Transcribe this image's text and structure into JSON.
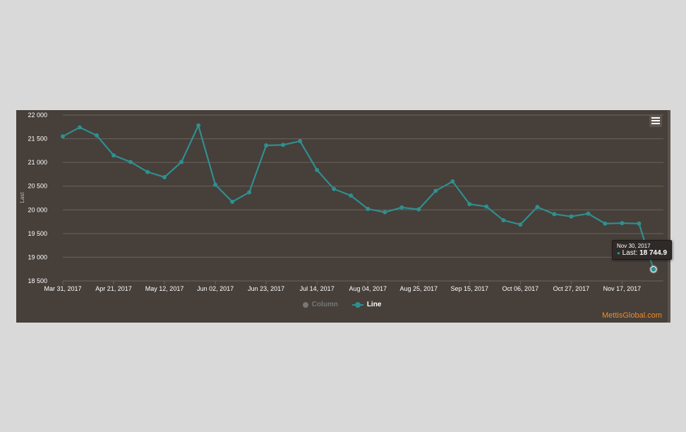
{
  "colors": {
    "page_background": "#d9d9d9",
    "plot_background": "#463f3a",
    "series_line": "#2f8f8f",
    "grid": "#6b635d",
    "axis_text": "#ffffff",
    "legend_inactive": "#777777",
    "credit": "#f28c28"
  },
  "menu": {
    "icon": "hamburger-menu-icon"
  },
  "tooltip": {
    "date": "Nov 30, 2017",
    "series_label": "Last:",
    "value": "18 744.9"
  },
  "credit": {
    "text": "MettisGlobal.com"
  },
  "chart_data": {
    "type": "line",
    "title": "",
    "xlabel": "",
    "ylabel": "Last",
    "ylim": [
      18500,
      22000
    ],
    "yticks": [
      18500,
      19000,
      19500,
      20000,
      20500,
      21000,
      21500,
      22000
    ],
    "ytick_labels": [
      "18 500",
      "19 000",
      "19 500",
      "20 000",
      "20 500",
      "21 000",
      "21 500",
      "22 000"
    ],
    "xtick_labels": [
      "Mar 31, 2017",
      "Apr 21, 2017",
      "May 12, 2017",
      "Jun 02, 2017",
      "Jun 23, 2017",
      "Jul 14, 2017",
      "Aug 04, 2017",
      "Aug 25, 2017",
      "Sep 15, 2017",
      "Oct 06, 2017",
      "Oct 27, 2017",
      "Nov 17, 2017"
    ],
    "grid": true,
    "legend_position": "bottom-center",
    "legend": [
      {
        "name": "Column",
        "active": false
      },
      {
        "name": "Line",
        "active": true
      }
    ],
    "series": [
      {
        "name": "Line",
        "x": [
          "2017-03-31",
          "2017-04-07",
          "2017-04-14",
          "2017-04-21",
          "2017-04-28",
          "2017-05-05",
          "2017-05-12",
          "2017-05-19",
          "2017-05-26",
          "2017-06-02",
          "2017-06-09",
          "2017-06-16",
          "2017-06-23",
          "2017-06-30",
          "2017-07-07",
          "2017-07-14",
          "2017-07-21",
          "2017-07-28",
          "2017-08-04",
          "2017-08-11",
          "2017-08-18",
          "2017-08-25",
          "2017-09-01",
          "2017-09-08",
          "2017-09-15",
          "2017-09-22",
          "2017-09-29",
          "2017-10-06",
          "2017-10-13",
          "2017-10-20",
          "2017-10-27",
          "2017-11-03",
          "2017-11-10",
          "2017-11-17",
          "2017-11-24",
          "2017-11-30"
        ],
        "values": [
          21550,
          21740,
          21570,
          21150,
          21010,
          20800,
          20690,
          21010,
          21780,
          20530,
          20170,
          20370,
          21360,
          21370,
          21450,
          20840,
          20440,
          20300,
          20020,
          19950,
          20050,
          20010,
          20400,
          20600,
          20120,
          20070,
          19780,
          19690,
          20060,
          19910,
          19860,
          19920,
          19710,
          19720,
          19710,
          18744.9
        ]
      }
    ]
  }
}
